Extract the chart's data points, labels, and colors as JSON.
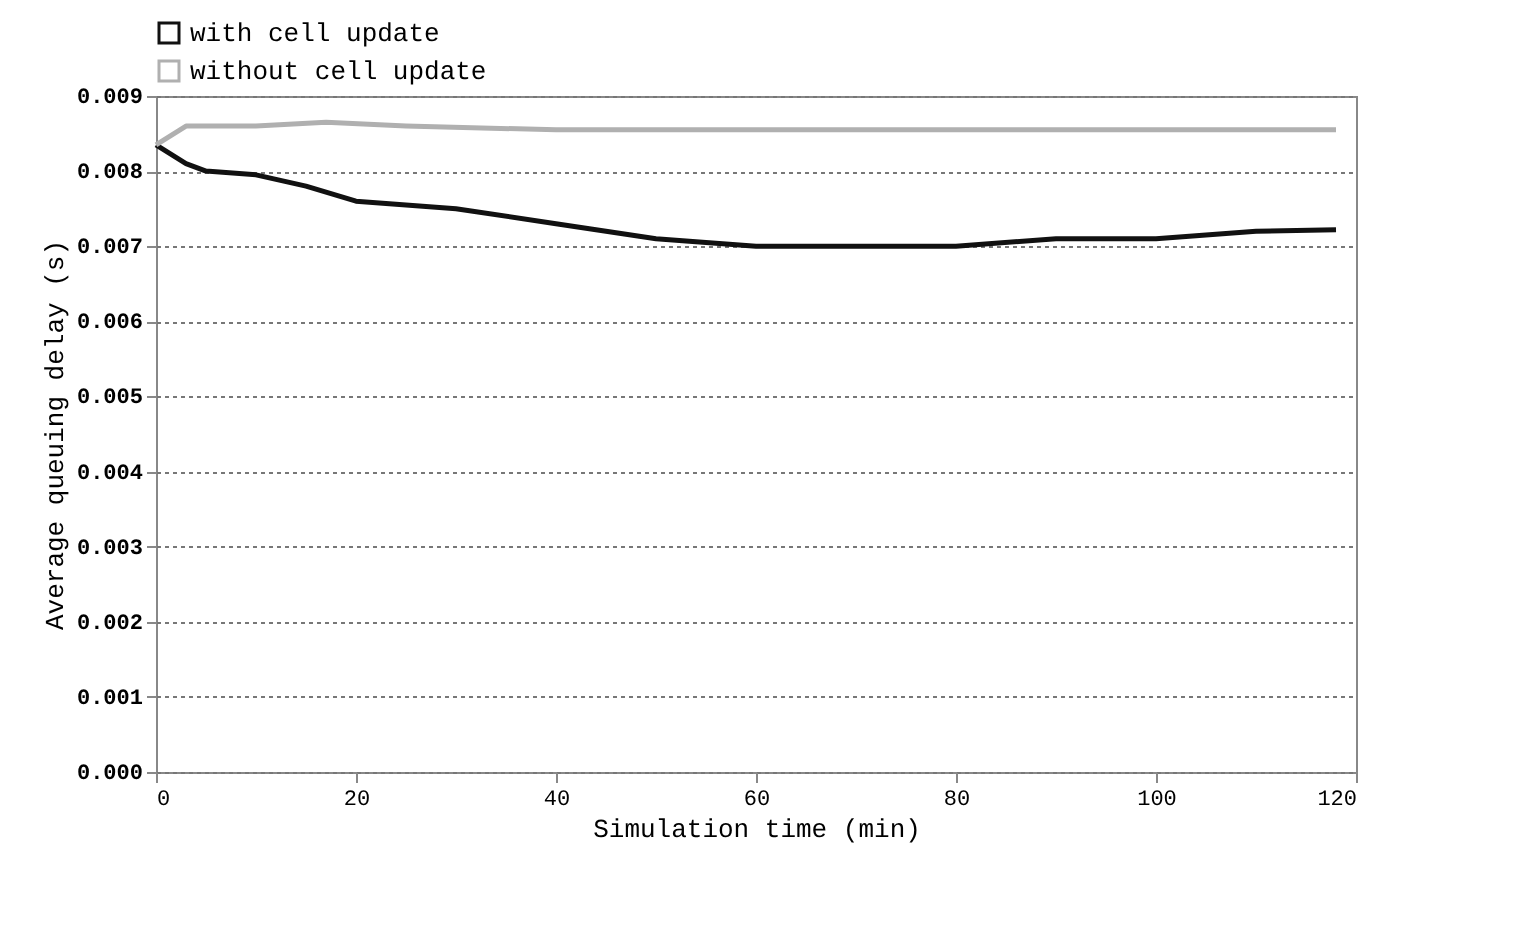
{
  "chart_data": {
    "type": "line",
    "xlabel": "Simulation time (min)",
    "ylabel": "Average queuing delay (s)",
    "x": [
      0,
      3,
      5,
      10,
      15,
      20,
      30,
      40,
      50,
      60,
      70,
      80,
      90,
      100,
      110,
      118
    ],
    "series": [
      {
        "name": "with cell update",
        "color": "#111111",
        "values": [
          0.00835,
          0.0081,
          0.008,
          0.00795,
          0.0078,
          0.0076,
          0.0075,
          0.0073,
          0.0071,
          0.007,
          0.007,
          0.007,
          0.0071,
          0.0071,
          0.0072,
          0.00722
        ]
      },
      {
        "name": "without cell update",
        "color": "#b0b0b0",
        "x": [
          0,
          3,
          10,
          17,
          25,
          40,
          60,
          80,
          100,
          118
        ],
        "values": [
          0.00835,
          0.0086,
          0.0086,
          0.00865,
          0.0086,
          0.00855,
          0.00855,
          0.00855,
          0.00855,
          0.00855
        ]
      }
    ],
    "xlim": [
      0,
      120
    ],
    "xticks": [
      0,
      20,
      40,
      60,
      80,
      100,
      120
    ],
    "ylim": [
      0,
      0.009
    ],
    "yticks": [
      {
        "value": 0,
        "label": "0.000"
      },
      {
        "value": 0.001,
        "label": "0.001"
      },
      {
        "value": 0.002,
        "label": "0.002"
      },
      {
        "value": 0.003,
        "label": "0.003"
      },
      {
        "value": 0.004,
        "label": "0.004"
      },
      {
        "value": 0.005,
        "label": "0.005"
      },
      {
        "value": 0.006,
        "label": "0.006"
      },
      {
        "value": 0.007,
        "label": "0.007"
      },
      {
        "value": 0.008,
        "label": "0.008"
      },
      {
        "value": 0.009,
        "label": "0.009"
      }
    ],
    "grid": "y",
    "legend": "top left",
    "marker": "none",
    "line_style": "solid"
  }
}
